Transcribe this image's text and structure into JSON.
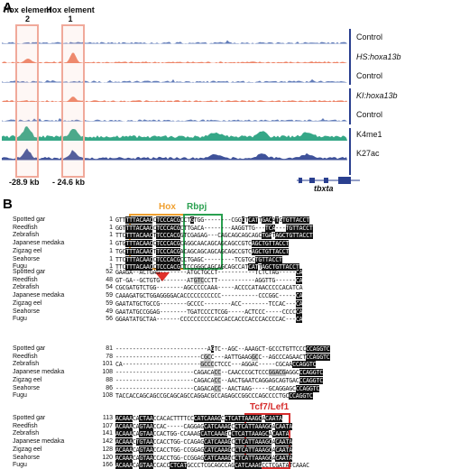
{
  "panel_a": {
    "label": "A",
    "hox_elements": [
      {
        "title": "Hox element 2",
        "kb": "-28.9 kb"
      },
      {
        "title": "Hox element 1",
        "kb": "- 24.6 kb"
      }
    ],
    "tracks": [
      {
        "label": "Control",
        "italic": false,
        "color": "#3b5ba8"
      },
      {
        "label": "HS:hoxa13b",
        "italic": true,
        "color": "#e8633f"
      },
      {
        "label": "Control",
        "italic": false,
        "color": "#3b5ba8"
      },
      {
        "label": "KI:hoxa13b",
        "italic": true,
        "color": "#e8633f"
      },
      {
        "label": "Control",
        "italic": false,
        "color": "#3b5ba8"
      },
      {
        "label": "K4me1",
        "italic": false,
        "color": "#1f9d7a"
      },
      {
        "label": "K27ac",
        "italic": false,
        "color": "#2a3f8f"
      }
    ],
    "gene": "tbxta",
    "colors": {
      "blue": "#3b5ba8",
      "orange": "#e8633f",
      "teal": "#1f9d7a",
      "navy": "#2a3f8f",
      "box": "#f0a99a"
    }
  },
  "panel_b": {
    "label": "B",
    "motifs": [
      {
        "name": "Hox",
        "color": "#f0a030"
      },
      {
        "name": "Rbpj",
        "color": "#2aa050"
      },
      {
        "name": "Tcf7/Lef1",
        "color": "#d62c2c"
      }
    ],
    "species": [
      "Spotted gar",
      "Reedfish",
      "Zebrafish",
      "Japanese medaka",
      "Zigzag eel",
      "Seahorse",
      "Fugu"
    ],
    "blocks": [
      {
        "numbers": [
          "1",
          "1",
          "1",
          "1",
          "1",
          "1",
          "1"
        ],
        "seqs": [
          "GTT[TTTACAAC]C[TCCCACG]CCT[G]TGG--------CGG[C]T[CAT]T[GAC]A[T]G[TGTTACCT]",
          "GGT[TTTACAAC]C[TCCCACG]CTTGACA--------AAGGTTG---[TCA]---[TGTTACCT]",
          "TTC[TTTACAAC]T[TCCCACG]GTCGAGAG---CAGCAGCAGCAGC[TGA]T[AGC][TGTTACCT]",
          "GTG[TTTACAAC]C[TCCCACG]CAGGCAACAGCAGCAGCCGTC[AGC][TGTTACCT]",
          "TGC[TTTACAAC]T[TCCCACG]ACAGCAGCAGCAGCAGCCGTC[AGC][TGTTACCT]",
          "TTC[TTTACAAC]C[TCCCACG]CCTGAGC---------TCGTGC[TGTTACCT]",
          "TTC[TTTACAAC]C[TCCCACG]CTCCGGGCAGCAGCAGCCAT[CAT]T[AGC][TGTTACCT]"
        ]
      },
      {
        "numbers": [
          "52",
          "48",
          "54",
          "59",
          "59",
          "49",
          "56"
        ],
        "seqs": [
          "GAAGA--ACTGAG--------ATGCTGCCT-----------TCTCTAG-----[CA]",
          "GT-GA--GCTGTG--------AT{GTC}CCTT-----------AGGTTG------[CA]",
          "CGCGATGTCTGG--------AGCCCCCAAA-----ACCCCATAACCCCCACATCA",
          "CAAAGATGCTGGAGGGGACACCCCCCCCCCC-----------CCCGGC-----[CA]",
          "GAATATGCTGCCG--------GCCCC--------ACC--------TCCAC---[CA]",
          "GAATATGCCGGAG--------TGATCCCCTCGG-----ACTCCC-----CCCC[CA]",
          "GGAATATGCTAA-------CCCCCCCCCCACCACCACCCACCCACCCCAC---[CA]"
        ]
      },
      {
        "numbers": [
          "81",
          "78",
          "101",
          "108",
          "88",
          "86",
          "108"
        ],
        "seqs": [
          "---------------------------A[G]TC--AGC--AAAGCT-GCCCTGTTCCC[CCAGGTC]",
          "-------------------------C{GC}C---AATTGAAG{GC}C--AGCCCAGAACT[CCAGGTC]",
          "CA-----------------------{GCCC}CTCCC---AGGAC-----CGCAA[CCAGGTC]",
          "-----------------------CAGACA{CC}--CAACCCGCTCCC{GGACG}AGGC[CCAGGTC]",
          "-----------------------CAGACA{CC}--AACTGAATCAGGAGCAGTGAC[CCAGGTC]",
          "-----------------------CAGACA{CC}--AACTAAG-----GCAGGAGC[CCAGGTC]",
          "TACCACCAGCAGCCGCAGCAGCCAGGACGCCAGAGCCGGCCCAGCCCCTGC[CCAGGTC]"
        ]
      },
      {
        "numbers": [
          "113",
          "107",
          "141",
          "142",
          "128",
          "120",
          "166"
        ],
        "seqs": [
          "[ACAAA]CA[CTAA]CCACACTTTTCC[CATCAAAG]C[CTCAT][TAAAGC]A[CAATA]",
          "[ACAAA]CA[GTAA]CCAC-----CAGGAG[CATCAAAG]C[CTCAT][TAAAGC]A[CAATA]",
          "[ACAAA]CA[GTAA]CCACTGG-CCAAAG[CATCAAAG]C[CTCAT][TAAAGC]A[CAATA]",
          "[ACAAA]C[TGTAA]CCACCTGG-CCAGAG[CATCAAAG]C[CTCAT][TAAAGC]A[CAATA]",
          "[ACAAA]CA[GTAA]CCACCTGG-CCGGAG[CATCAAAG]C[CTCAT][TAAAGC]A[CAATA]",
          "[ACAAA]CA[GTAA]CCACCTGG-CCGGAG[CATCAAAG]C[CTCAT][TAAAGC]A[CAATA]",
          "[ACAAA]CA[GTAA]CCACC[CTCAT]GCCCTCGCAGCCAG[CATCAAAG]CCTCGATATCAAAC"
        ]
      }
    ]
  }
}
